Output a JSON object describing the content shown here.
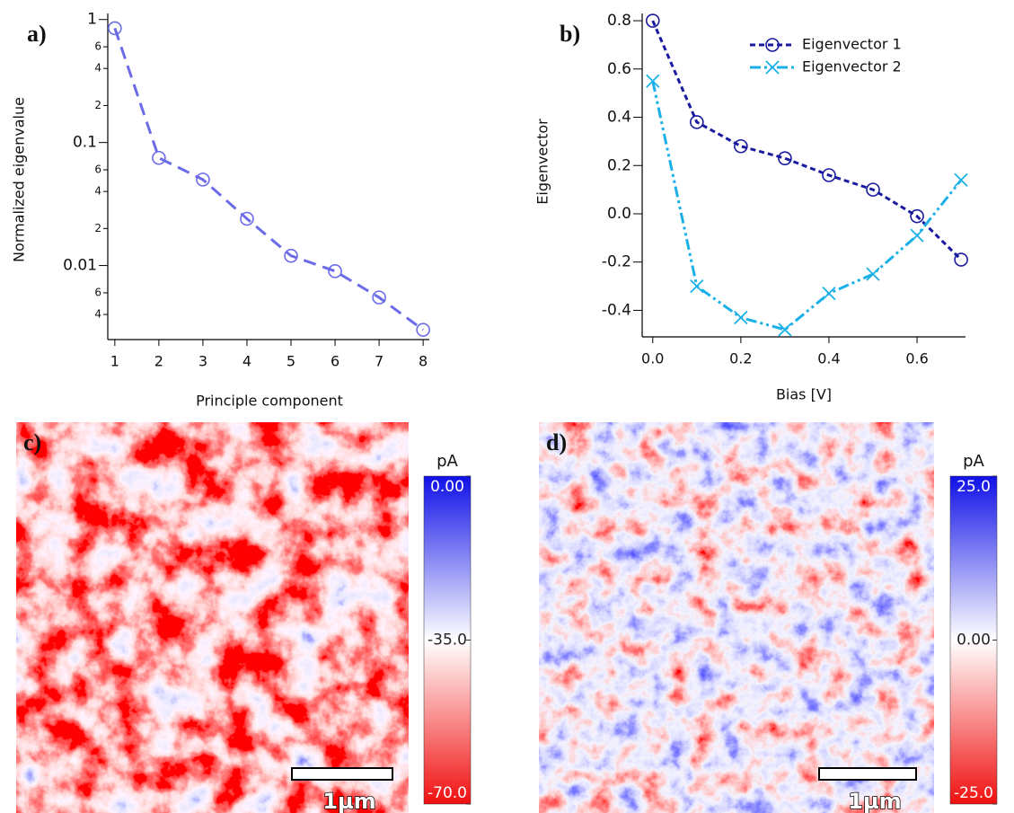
{
  "chart_data": [
    {
      "type": "line",
      "panel_label": "a)",
      "xlabel": "Principle component",
      "ylabel": "Normalized eigenvalue",
      "x": [
        1,
        2,
        3,
        4,
        5,
        6,
        7,
        8
      ],
      "series": [
        {
          "color": "#6b6be8",
          "dash": "14 8",
          "marker": "circle",
          "values": [
            0.85,
            0.075,
            0.05,
            0.024,
            0.012,
            0.009,
            0.0055,
            0.003
          ]
        }
      ],
      "log_y": true,
      "xlim": [
        0.84,
        8.14
      ],
      "ylim": [
        0.0025,
        1.12
      ],
      "xticks": [
        1,
        2,
        3,
        4,
        5,
        6,
        7,
        8
      ],
      "yticks": [
        1,
        {
          "value": 0.6,
          "label": "6"
        },
        {
          "value": 0.4,
          "label": "4"
        },
        {
          "value": 0.2,
          "label": "2"
        },
        0.1,
        {
          "value": 0.06,
          "label": "6"
        },
        {
          "value": 0.04,
          "label": "4"
        },
        {
          "value": 0.02,
          "label": "2"
        },
        0.01,
        {
          "value": 0.006,
          "label": "6"
        },
        {
          "value": 0.004,
          "label": "4"
        }
      ]
    },
    {
      "type": "line",
      "panel_label": "b)",
      "xlabel": "Bias [V]",
      "ylabel": "Eigenvector",
      "x": [
        0,
        0.1,
        0.2,
        0.3,
        0.4,
        0.5,
        0.6,
        0.7
      ],
      "series": [
        {
          "name": "Eigenvector 1",
          "color": "#1a1aa0",
          "dash": "6 4",
          "marker": "circle",
          "values": [
            0.8,
            0.38,
            0.28,
            0.23,
            0.16,
            0.1,
            -0.01,
            -0.19
          ]
        },
        {
          "name": "Eigenvector 2",
          "color": "#1ab0e8",
          "dash": "12 4 3 4 3 4",
          "marker": "x",
          "values": [
            0.55,
            -0.3,
            -0.43,
            -0.48,
            -0.33,
            -0.25,
            -0.09,
            0.14
          ]
        }
      ],
      "legend": "top-right",
      "xlim": [
        -0.024,
        0.71
      ],
      "ylim": [
        -0.51,
        0.83
      ],
      "xticks": [
        {
          "value": 0,
          "label": "0.0"
        },
        0.2,
        0.4,
        0.6
      ],
      "yticks": [
        0.8,
        0.6,
        0.4,
        0.2,
        {
          "value": 0,
          "label": "0.0"
        },
        -0.2,
        -0.4
      ]
    },
    {
      "type": "image",
      "panel_label": "c)",
      "colorbar_label": "pA",
      "clim": [
        -70,
        0
      ],
      "cticks": [
        {
          "value": 0,
          "label": "0.00"
        },
        {
          "value": -35,
          "label": "-35.0"
        },
        {
          "value": -70,
          "label": "-70.0"
        }
      ],
      "scalebar_label": "1µm"
    },
    {
      "type": "image",
      "panel_label": "d)",
      "colorbar_label": "pA",
      "clim": [
        -25,
        25
      ],
      "cticks": [
        {
          "value": 25,
          "label": "25.0"
        },
        {
          "value": 0,
          "label": "0.00"
        },
        {
          "value": -25,
          "label": "-25.0"
        }
      ],
      "scalebar_label": "1µm"
    }
  ]
}
